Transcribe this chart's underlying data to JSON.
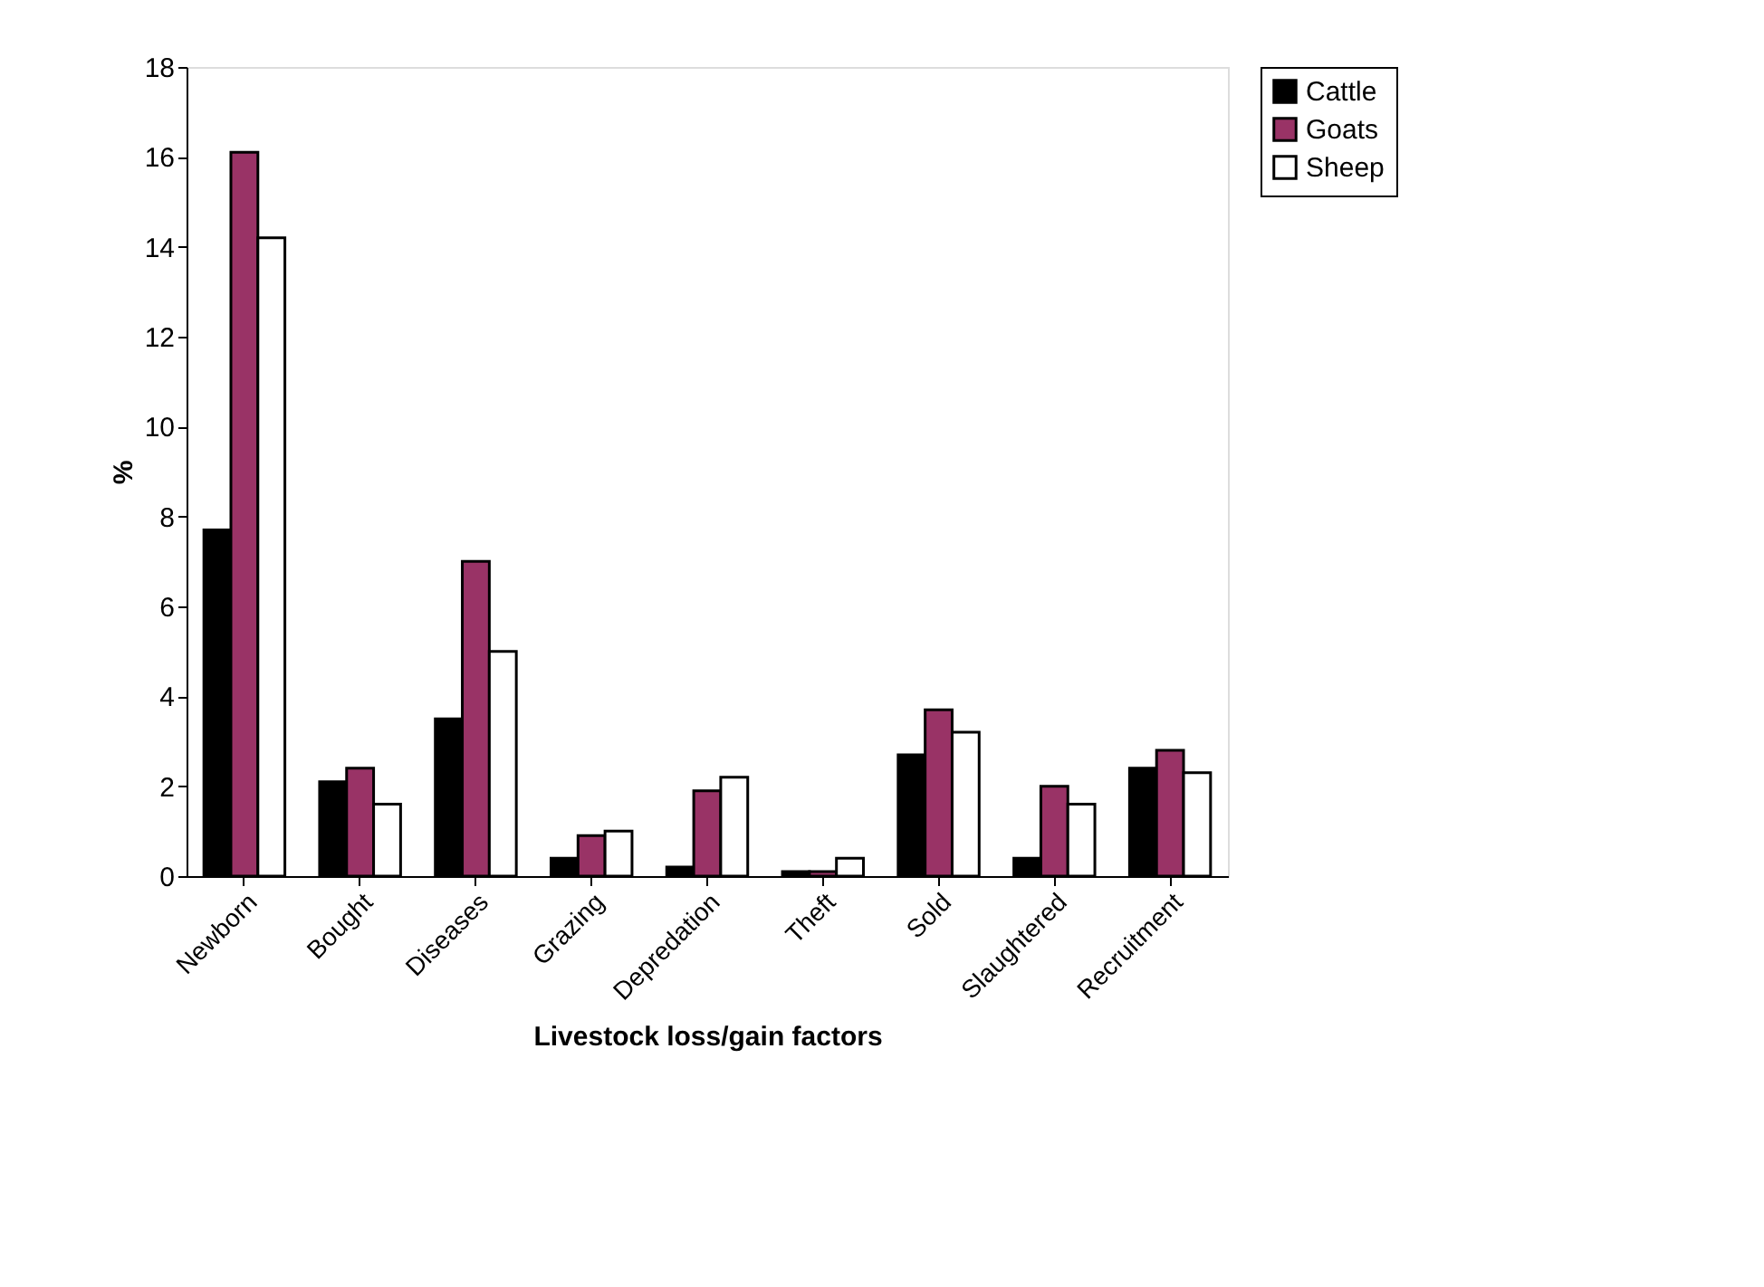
{
  "chart_data": {
    "type": "bar",
    "xlabel": "Livestock loss/gain factors",
    "ylabel": "%",
    "categories": [
      "Newborn",
      "Bought",
      "Diseases",
      "Grazing",
      "Depredation",
      "Theft",
      "Sold",
      "Slaughtered",
      "Recruitment"
    ],
    "series": [
      {
        "name": "Cattle",
        "color": "#000000",
        "values": [
          7.7,
          2.1,
          3.5,
          0.4,
          0.2,
          0.1,
          2.7,
          0.4,
          2.4
        ]
      },
      {
        "name": "Goats",
        "color": "#993366",
        "values": [
          16.1,
          2.4,
          7.0,
          0.9,
          1.9,
          0.1,
          3.7,
          2.0,
          2.8
        ]
      },
      {
        "name": "Sheep",
        "color": "#ffffff",
        "values": [
          14.2,
          1.6,
          5.0,
          1.0,
          2.2,
          0.4,
          3.2,
          1.6,
          2.3
        ]
      }
    ],
    "ylim": [
      0,
      18
    ],
    "yticks": [
      0,
      2,
      4,
      6,
      8,
      10,
      12,
      14,
      16,
      18
    ],
    "grid": false,
    "legend": "right"
  }
}
